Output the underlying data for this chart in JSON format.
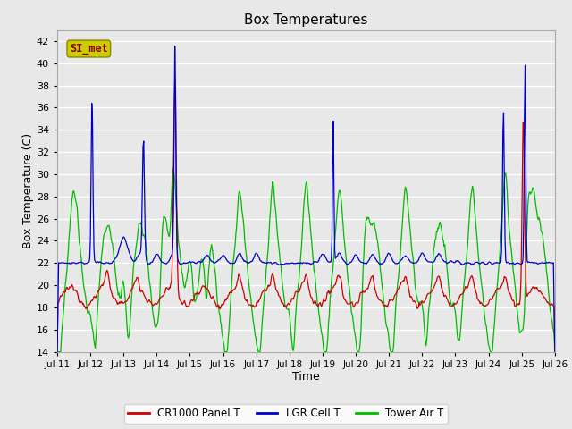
{
  "title": "Box Temperatures",
  "xlabel": "Time",
  "ylabel": "Box Temperature (C)",
  "ylim": [
    14,
    43
  ],
  "yticks": [
    14,
    16,
    18,
    20,
    22,
    24,
    26,
    28,
    30,
    32,
    34,
    36,
    38,
    40,
    42
  ],
  "background_color": "#e8e8e8",
  "plot_bg_color": "#e8e8e8",
  "grid_color": "#ffffff",
  "line_colors": {
    "panel": "#cc0000",
    "lgr": "#0000cc",
    "tower": "#00bb00"
  },
  "legend_labels": [
    "CR1000 Panel T",
    "LGR Cell T",
    "Tower Air T"
  ],
  "watermark": "SI_met",
  "watermark_bg": "#cccc00",
  "watermark_fg": "#880000",
  "x_tick_labels": [
    "Jul 11",
    "Jul 12",
    "Jul 13",
    "Jul 14",
    "Jul 15",
    "Jul 16",
    "Jul 17",
    "Jul 18",
    "Jul 19",
    "Jul 20",
    "Jul 21",
    "Jul 22",
    "Jul 23",
    "Jul 24",
    "Jul 25",
    "Jul 26"
  ],
  "num_points": 720,
  "figsize": [
    6.4,
    4.8
  ],
  "dpi": 100
}
